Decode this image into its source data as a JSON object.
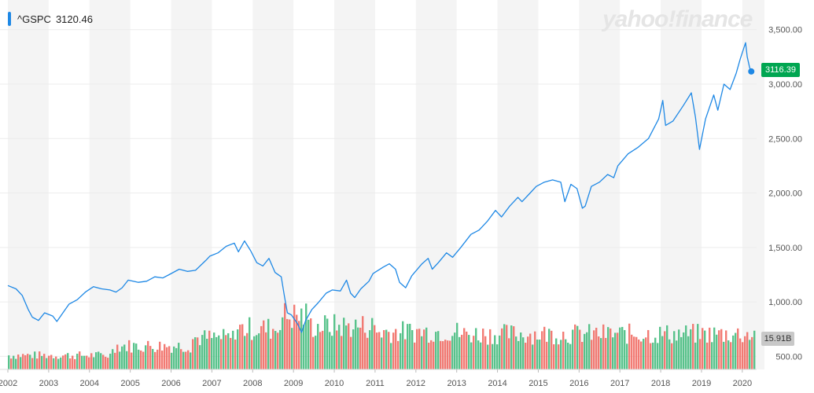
{
  "header": {
    "ticker": "^GSPC",
    "price": "3120.46"
  },
  "watermark": "yahoo!finance",
  "badges": {
    "last_price": "3116.39",
    "last_volume": "15.91B"
  },
  "colors": {
    "price_line": "#1e88e5",
    "volume_up": "#3cb878",
    "volume_down": "#f0645c",
    "badge_price": "#00a651",
    "band": "#f4f4f4"
  },
  "chart_data": {
    "type": "line",
    "x_ticks": [
      "2002",
      "2003",
      "2004",
      "2005",
      "2006",
      "2007",
      "2008",
      "2009",
      "2010",
      "2011",
      "2012",
      "2013",
      "2014",
      "2015",
      "2016",
      "2017",
      "2018",
      "2019",
      "2020"
    ],
    "y_ticks": [
      "3,500.00",
      "3,000.00",
      "2,500.00",
      "2,000.00",
      "1,500.00",
      "1,000.00",
      "500.00"
    ],
    "ylim": [
      380,
      3700
    ],
    "xlim": [
      2002,
      2020.35
    ],
    "series": [
      {
        "points": [
          [
            2002.0,
            1150
          ],
          [
            2002.2,
            1120
          ],
          [
            2002.35,
            1060
          ],
          [
            2002.5,
            930
          ],
          [
            2002.6,
            860
          ],
          [
            2002.75,
            830
          ],
          [
            2002.9,
            900
          ],
          [
            2003.1,
            870
          ],
          [
            2003.2,
            820
          ],
          [
            2003.35,
            900
          ],
          [
            2003.5,
            980
          ],
          [
            2003.7,
            1020
          ],
          [
            2003.9,
            1090
          ],
          [
            2004.1,
            1140
          ],
          [
            2004.3,
            1120
          ],
          [
            2004.5,
            1110
          ],
          [
            2004.65,
            1090
          ],
          [
            2004.8,
            1130
          ],
          [
            2004.95,
            1200
          ],
          [
            2005.2,
            1180
          ],
          [
            2005.4,
            1190
          ],
          [
            2005.6,
            1230
          ],
          [
            2005.8,
            1220
          ],
          [
            2005.95,
            1250
          ],
          [
            2006.2,
            1300
          ],
          [
            2006.4,
            1280
          ],
          [
            2006.6,
            1290
          ],
          [
            2006.85,
            1380
          ],
          [
            2006.95,
            1420
          ],
          [
            2007.15,
            1450
          ],
          [
            2007.35,
            1510
          ],
          [
            2007.55,
            1540
          ],
          [
            2007.65,
            1460
          ],
          [
            2007.8,
            1560
          ],
          [
            2007.95,
            1470
          ],
          [
            2008.1,
            1360
          ],
          [
            2008.25,
            1330
          ],
          [
            2008.4,
            1400
          ],
          [
            2008.55,
            1270
          ],
          [
            2008.7,
            1230
          ],
          [
            2008.78,
            1050
          ],
          [
            2008.85,
            900
          ],
          [
            2008.95,
            880
          ],
          [
            2009.1,
            800
          ],
          [
            2009.2,
            720
          ],
          [
            2009.3,
            830
          ],
          [
            2009.45,
            930
          ],
          [
            2009.6,
            990
          ],
          [
            2009.8,
            1080
          ],
          [
            2009.95,
            1110
          ],
          [
            2010.15,
            1100
          ],
          [
            2010.3,
            1200
          ],
          [
            2010.4,
            1080
          ],
          [
            2010.5,
            1040
          ],
          [
            2010.65,
            1120
          ],
          [
            2010.85,
            1190
          ],
          [
            2010.95,
            1260
          ],
          [
            2011.2,
            1320
          ],
          [
            2011.35,
            1350
          ],
          [
            2011.5,
            1300
          ],
          [
            2011.6,
            1180
          ],
          [
            2011.75,
            1130
          ],
          [
            2011.9,
            1240
          ],
          [
            2012.15,
            1350
          ],
          [
            2012.3,
            1400
          ],
          [
            2012.4,
            1300
          ],
          [
            2012.55,
            1360
          ],
          [
            2012.75,
            1450
          ],
          [
            2012.9,
            1410
          ],
          [
            2013.1,
            1500
          ],
          [
            2013.35,
            1620
          ],
          [
            2013.55,
            1660
          ],
          [
            2013.75,
            1740
          ],
          [
            2013.95,
            1840
          ],
          [
            2014.1,
            1780
          ],
          [
            2014.3,
            1880
          ],
          [
            2014.5,
            1960
          ],
          [
            2014.6,
            1920
          ],
          [
            2014.8,
            2000
          ],
          [
            2014.95,
            2060
          ],
          [
            2015.15,
            2100
          ],
          [
            2015.35,
            2120
          ],
          [
            2015.55,
            2100
          ],
          [
            2015.65,
            1920
          ],
          [
            2015.8,
            2080
          ],
          [
            2015.95,
            2040
          ],
          [
            2016.08,
            1860
          ],
          [
            2016.15,
            1880
          ],
          [
            2016.3,
            2060
          ],
          [
            2016.5,
            2100
          ],
          [
            2016.7,
            2170
          ],
          [
            2016.85,
            2140
          ],
          [
            2016.95,
            2250
          ],
          [
            2017.2,
            2360
          ],
          [
            2017.45,
            2420
          ],
          [
            2017.7,
            2500
          ],
          [
            2017.95,
            2680
          ],
          [
            2018.05,
            2850
          ],
          [
            2018.12,
            2620
          ],
          [
            2018.3,
            2660
          ],
          [
            2018.55,
            2800
          ],
          [
            2018.75,
            2920
          ],
          [
            2018.85,
            2700
          ],
          [
            2018.95,
            2400
          ],
          [
            2019.1,
            2680
          ],
          [
            2019.3,
            2900
          ],
          [
            2019.4,
            2760
          ],
          [
            2019.55,
            3000
          ],
          [
            2019.7,
            2950
          ],
          [
            2019.85,
            3100
          ],
          [
            2019.95,
            3230
          ],
          [
            2020.08,
            3380
          ],
          [
            2020.12,
            3250
          ],
          [
            2020.18,
            3150
          ],
          [
            2020.22,
            3116
          ]
        ]
      }
    ],
    "volume": {
      "ylim": [
        0,
        6000
      ],
      "label_start": "500.00",
      "last": "15.91B"
    }
  }
}
